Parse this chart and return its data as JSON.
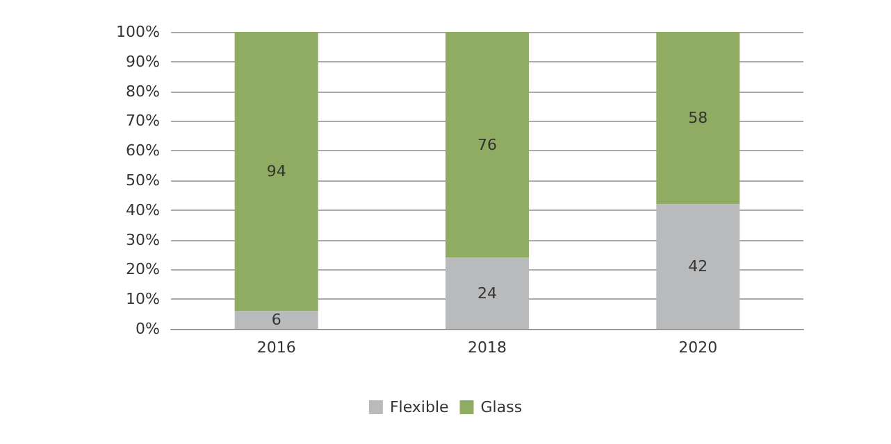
{
  "chart_data": {
    "type": "bar",
    "stacked": true,
    "categories": [
      "2016",
      "2018",
      "2020"
    ],
    "series": [
      {
        "name": "Flexible",
        "color": "#b9babc",
        "values": [
          6,
          24,
          42
        ]
      },
      {
        "name": "Glass",
        "color": "#8fac62",
        "values": [
          94,
          76,
          58
        ]
      }
    ],
    "ylim": [
      0,
      100
    ],
    "yticks": [
      {
        "value": 0,
        "label": "0%"
      },
      {
        "value": 10,
        "label": "10%"
      },
      {
        "value": 20,
        "label": "20%"
      },
      {
        "value": 30,
        "label": "30%"
      },
      {
        "value": 40,
        "label": "40%"
      },
      {
        "value": 50,
        "label": "50%"
      },
      {
        "value": 60,
        "label": "60%"
      },
      {
        "value": 70,
        "label": "70%"
      },
      {
        "value": 80,
        "label": "80%"
      },
      {
        "value": 90,
        "label": "90%"
      },
      {
        "value": 100,
        "label": "100%"
      }
    ],
    "grid": "y",
    "legend": "bottom",
    "data_labels": true
  }
}
